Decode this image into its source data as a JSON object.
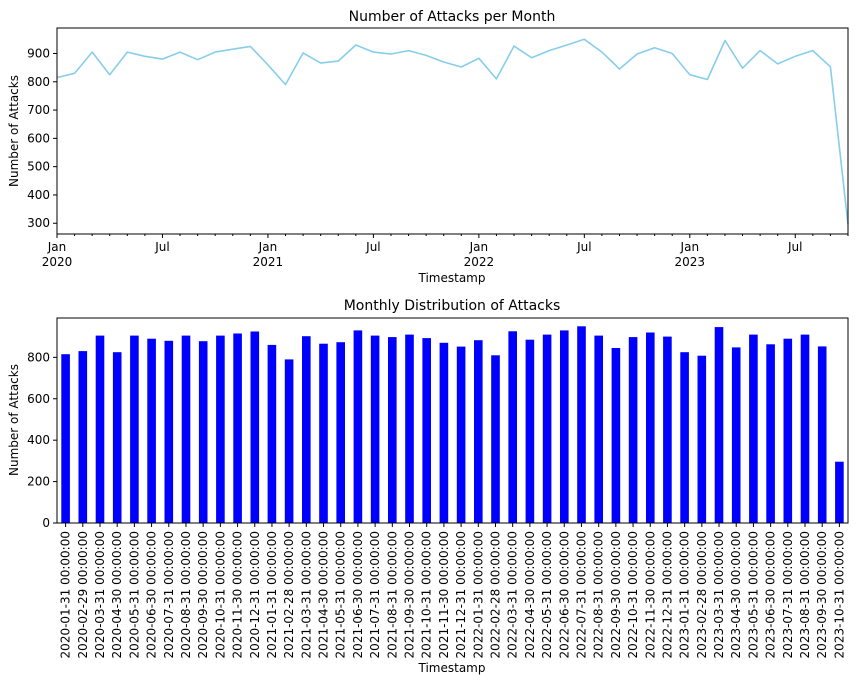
{
  "chart_data": [
    {
      "type": "line",
      "title": "Number of Attacks per Month",
      "xlabel": "Timestamp",
      "ylabel": "Number of Attacks",
      "ylim": [
        262,
        990
      ],
      "yticks": [
        300,
        400,
        500,
        600,
        700,
        800,
        900
      ],
      "xtick_labels": [
        {
          "label": "Jan",
          "sub": "2020",
          "index": 0
        },
        {
          "label": "Jul",
          "sub": "",
          "index": 6
        },
        {
          "label": "Jan",
          "sub": "2021",
          "index": 12
        },
        {
          "label": "Jul",
          "sub": "",
          "index": 18
        },
        {
          "label": "Jan",
          "sub": "2022",
          "index": 24
        },
        {
          "label": "Jul",
          "sub": "",
          "index": 30
        },
        {
          "label": "Jan",
          "sub": "2023",
          "index": 36
        },
        {
          "label": "Jul",
          "sub": "",
          "index": 42
        }
      ],
      "grid": false,
      "series": [
        {
          "color": "#87ceeb"
        }
      ]
    },
    {
      "type": "bar",
      "title": "Monthly Distribution of Attacks",
      "xlabel": "Timestamp",
      "ylabel": "Number of Attacks",
      "ylim": [
        0,
        990
      ],
      "yticks": [
        0,
        200,
        400,
        600,
        800
      ],
      "grid": false,
      "series": [
        {
          "color": "#0000ff"
        }
      ]
    }
  ],
  "months": [
    "2020-01-31 00:00:00",
    "2020-02-29 00:00:00",
    "2020-03-31 00:00:00",
    "2020-04-30 00:00:00",
    "2020-05-31 00:00:00",
    "2020-06-30 00:00:00",
    "2020-07-31 00:00:00",
    "2020-08-31 00:00:00",
    "2020-09-30 00:00:00",
    "2020-10-31 00:00:00",
    "2020-11-30 00:00:00",
    "2020-12-31 00:00:00",
    "2021-01-31 00:00:00",
    "2021-02-28 00:00:00",
    "2021-03-31 00:00:00",
    "2021-04-30 00:00:00",
    "2021-05-31 00:00:00",
    "2021-06-30 00:00:00",
    "2021-07-31 00:00:00",
    "2021-08-31 00:00:00",
    "2021-09-30 00:00:00",
    "2021-10-31 00:00:00",
    "2021-11-30 00:00:00",
    "2021-12-31 00:00:00",
    "2022-01-31 00:00:00",
    "2022-02-28 00:00:00",
    "2022-03-31 00:00:00",
    "2022-04-30 00:00:00",
    "2022-05-31 00:00:00",
    "2022-06-30 00:00:00",
    "2022-07-31 00:00:00",
    "2022-08-31 00:00:00",
    "2022-09-30 00:00:00",
    "2022-10-31 00:00:00",
    "2022-11-30 00:00:00",
    "2022-12-31 00:00:00",
    "2023-01-31 00:00:00",
    "2023-02-28 00:00:00",
    "2023-03-31 00:00:00",
    "2023-04-30 00:00:00",
    "2023-05-31 00:00:00",
    "2023-06-30 00:00:00",
    "2023-07-31 00:00:00",
    "2023-08-31 00:00:00",
    "2023-09-30 00:00:00",
    "2023-10-31 00:00:00"
  ],
  "values": [
    815,
    830,
    905,
    825,
    905,
    890,
    880,
    905,
    878,
    905,
    915,
    925,
    860,
    790,
    902,
    866,
    873,
    930,
    905,
    898,
    910,
    893,
    870,
    852,
    883,
    810,
    926,
    885,
    910,
    930,
    950,
    905,
    845,
    898,
    920,
    900,
    825,
    808,
    946,
    848,
    910,
    863,
    890,
    910,
    853,
    296
  ]
}
